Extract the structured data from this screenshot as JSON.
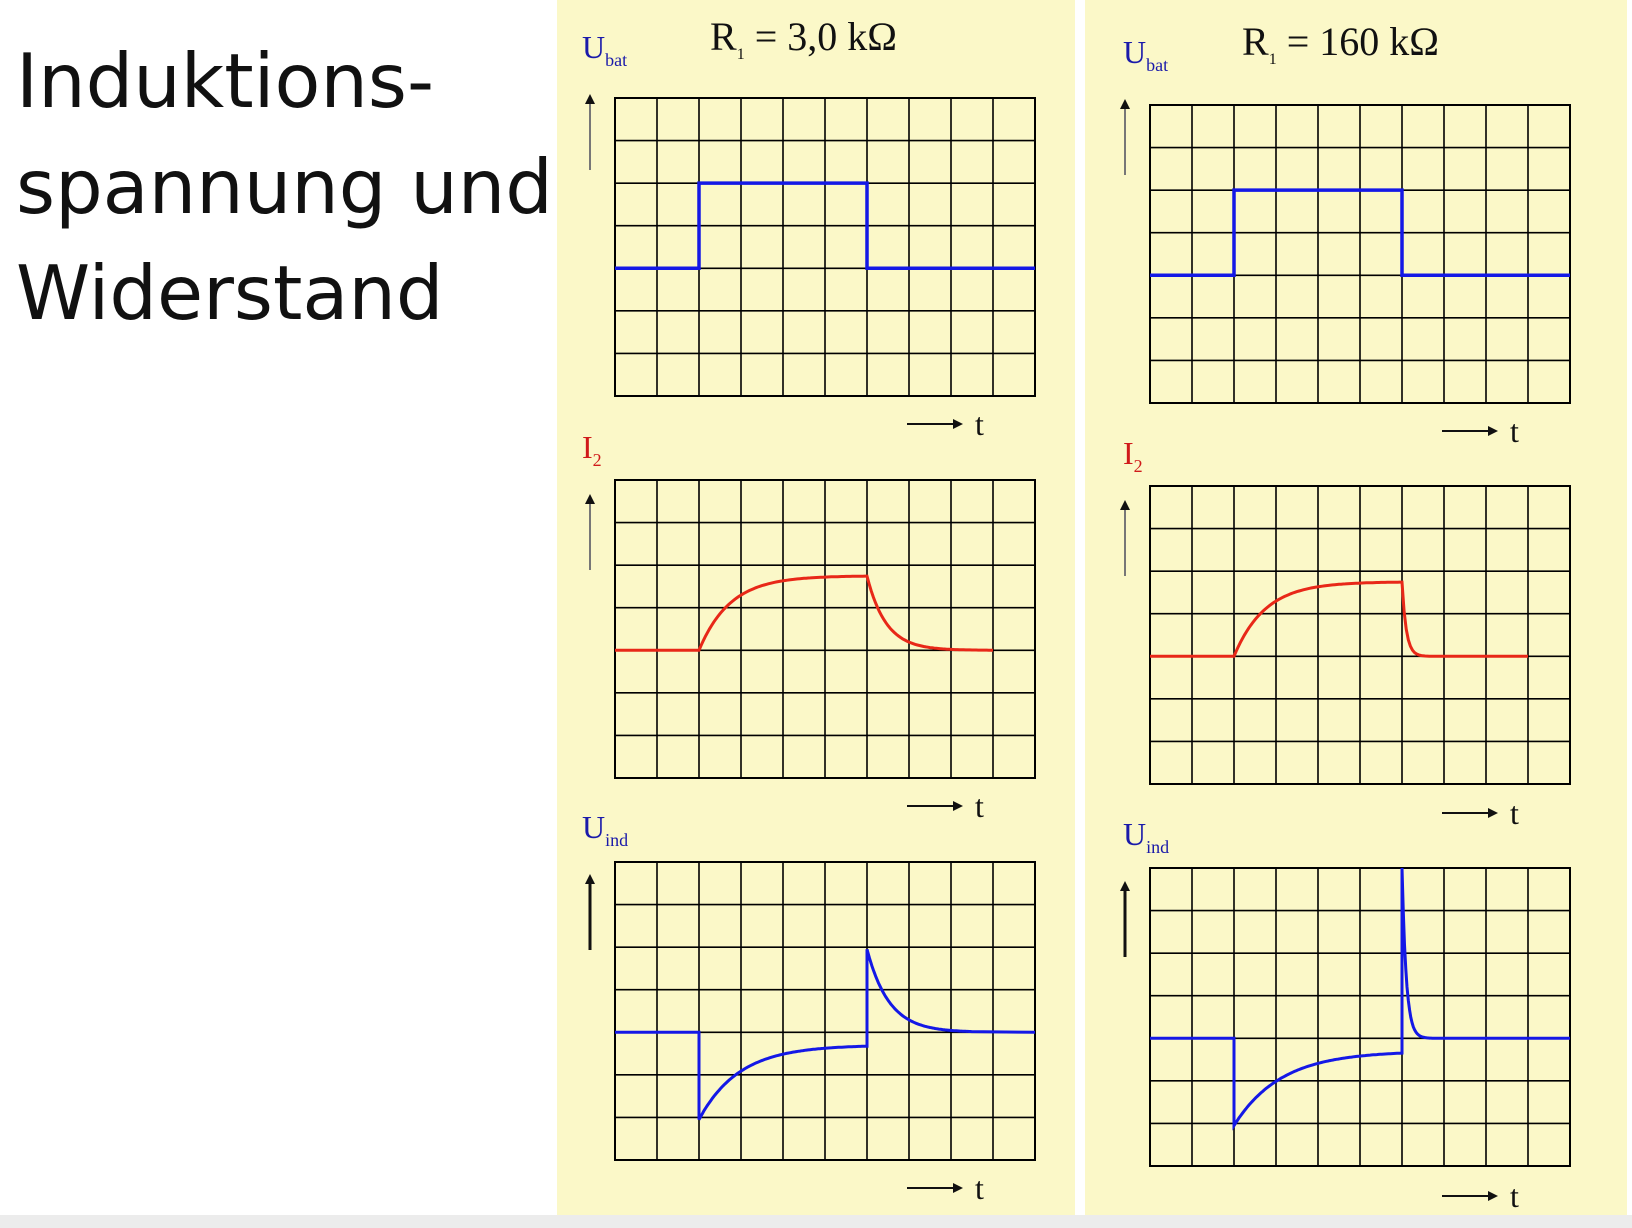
{
  "title": "Induktions-\nspannung und\nWiderstand",
  "colors": {
    "background": "#fbf8c8",
    "grid": "#000000",
    "u_curves": "#1418e6",
    "i_curve": "#e82818",
    "u_label": "#1a1aaa",
    "i_label": "#d01a1a"
  },
  "columns": [
    {
      "r_label": "R",
      "r_sub": "1",
      "r_value": " = 3,0 kΩ",
      "charts": [
        {
          "signal": "Ubat",
          "label_main": "U",
          "label_sub": "bat",
          "label_color": "u_label",
          "t_label": "t"
        },
        {
          "signal": "I2",
          "label_main": "I",
          "label_sub": "2",
          "label_color": "i_label",
          "t_label": "t"
        },
        {
          "signal": "Uind",
          "label_main": "U",
          "label_sub": "ind",
          "label_color": "u_label",
          "t_label": "t"
        }
      ]
    },
    {
      "r_label": "R",
      "r_sub": "1",
      "r_value": " = 160 kΩ",
      "charts": [
        {
          "signal": "Ubat",
          "label_main": "U",
          "label_sub": "bat",
          "label_color": "u_label",
          "t_label": "t"
        },
        {
          "signal": "I2",
          "label_main": "I",
          "label_sub": "2",
          "label_color": "i_label",
          "t_label": "t"
        },
        {
          "signal": "Uind",
          "label_main": "U",
          "label_sub": "ind",
          "label_color": "u_label",
          "t_label": "t"
        }
      ]
    }
  ]
}
